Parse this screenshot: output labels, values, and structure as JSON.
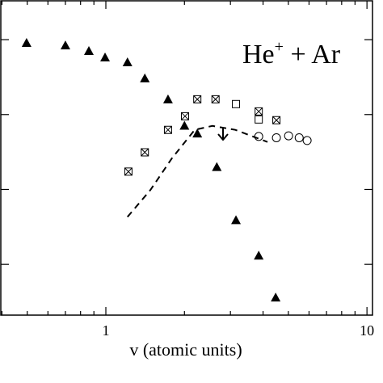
{
  "chart_data": {
    "type": "scatter",
    "xlabel": "v (atomic units)",
    "annotation": {
      "base": "He",
      "sup": "+",
      "rest": " + Ar"
    },
    "xlog": true,
    "ylog": true,
    "xlim": [
      0.396,
      10.5
    ],
    "ylim": [
      0.00021,
      3.3
    ],
    "xticks": [
      1,
      10
    ],
    "xminor": [
      0.4,
      0.5,
      0.6,
      0.7,
      0.8,
      0.9,
      2,
      3,
      4,
      5,
      6,
      7,
      8,
      9
    ],
    "yticks": [
      0.001,
      0.01,
      0.1,
      1
    ],
    "series": [
      {
        "marker": "triangle",
        "color": "#000000",
        "x": [
          0.497,
          0.7,
          0.861,
          0.993,
          1.21,
          1.41,
          1.73,
          2.0,
          2.24,
          2.66,
          3.15,
          3.85,
          4.47
        ],
        "values": [
          0.906,
          0.84,
          0.707,
          0.58,
          0.5,
          0.305,
          0.16,
          0.071,
          0.056,
          0.02,
          0.0039,
          0.00131,
          0.000362
        ]
      },
      {
        "marker": "crossed-square",
        "color": "#000000",
        "x": [
          1.22,
          1.41,
          1.73,
          2.01,
          2.24,
          2.63,
          3.85,
          4.5
        ],
        "values": [
          0.0173,
          0.0313,
          0.0625,
          0.095,
          0.16,
          0.16,
          0.11,
          0.084
        ]
      },
      {
        "marker": "open-square",
        "color": "#000000",
        "x": [
          3.15,
          3.85
        ],
        "values": [
          0.138,
          0.086
        ]
      },
      {
        "marker": "open-circle",
        "color": "#000000",
        "x": [
          3.85,
          4.5,
          5.01,
          5.5,
          5.9
        ],
        "values": [
          0.051,
          0.049,
          0.052,
          0.049,
          0.045
        ]
      },
      {
        "marker": "dashed-line",
        "color": "#000000",
        "x": [
          1.21,
          1.48,
          1.79,
          2.19,
          2.56,
          3.13,
          4.16
        ],
        "values": [
          0.0043,
          0.0098,
          0.026,
          0.0625,
          0.0706,
          0.0625,
          0.043
        ]
      }
    ]
  }
}
